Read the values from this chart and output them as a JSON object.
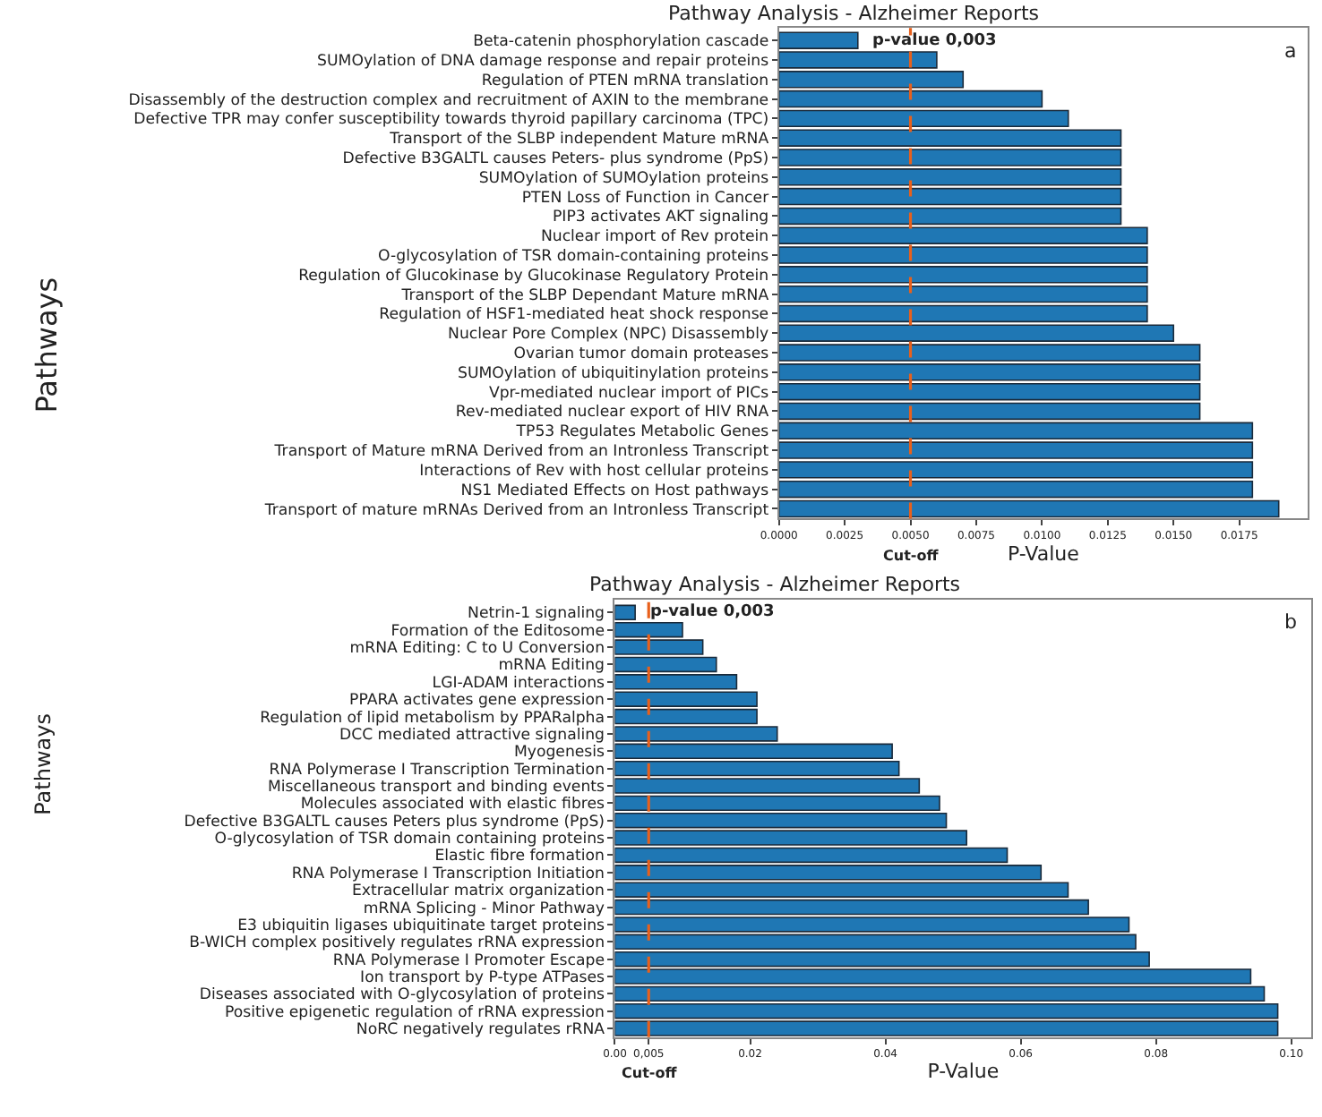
{
  "chart_data": [
    {
      "type": "bar",
      "orientation": "horizontal",
      "title": "Pathway Analysis - Alzheimer Reports",
      "xlabel": "P-Value",
      "ylabel": "Pathways",
      "categories": [
        "Beta-catenin phosphorylation cascade",
        "SUMOylation of DNA damage response and repair proteins",
        "Regulation of PTEN mRNA translation",
        "Disassembly of the destruction complex and recruitment of AXIN to the membrane",
        "Defective TPR may confer susceptibility towards thyroid papillary carcinoma (TPC)",
        "Transport of the SLBP independent Mature mRNA",
        "Defective B3GALTL causes Peters- plus syndrome (PpS)",
        "SUMOylation of SUMOylation proteins",
        "PTEN Loss of Function in Cancer",
        "PIP3 activates AKT signaling",
        "Nuclear import of Rev protein",
        "O-glycosylation of TSR domain-containing proteins",
        "Regulation of Glucokinase by Glucokinase Regulatory Protein",
        "Transport of the SLBP Dependant Mature mRNA",
        "Regulation of HSF1-mediated heat shock response",
        "Nuclear Pore Complex (NPC) Disassembly",
        "Ovarian tumor domain proteases",
        "SUMOylation of ubiquitinylation proteins",
        "Vpr-mediated nuclear import of PICs",
        "Rev-mediated nuclear export of HIV RNA",
        "TP53 Regulates Metabolic Genes",
        "Transport of Mature mRNA Derived from an Intronless Transcript",
        "Interactions of Rev with host cellular proteins",
        "NS1 Mediated Effects on Host pathways",
        "Transport of mature mRNAs Derived from an Intronless Transcript"
      ],
      "values": [
        0.003,
        0.006,
        0.007,
        0.01,
        0.011,
        0.013,
        0.013,
        0.013,
        0.013,
        0.013,
        0.014,
        0.014,
        0.014,
        0.014,
        0.014,
        0.015,
        0.016,
        0.016,
        0.016,
        0.016,
        0.018,
        0.018,
        0.018,
        0.018,
        0.019
      ],
      "color": "#1f77b4",
      "xlim": [
        0,
        0.0201
      ],
      "xticks": [
        {
          "value": 0,
          "label": "0.0000"
        },
        {
          "value": 0.0025,
          "label": "0.0025"
        },
        {
          "value": 0.005,
          "label": "0.0050"
        },
        {
          "value": 0.0075,
          "label": "0.0075"
        },
        {
          "value": 0.01,
          "label": "0.0100"
        },
        {
          "value": 0.0125,
          "label": "0.0125"
        },
        {
          "value": 0.015,
          "label": "0.0150"
        },
        {
          "value": 0.0175,
          "label": "0.0175"
        }
      ],
      "ref_lines": [
        {
          "axis": "x",
          "value": 0.005,
          "label": "Cut-off",
          "color": "#e8601c",
          "line_style": "dashed"
        }
      ],
      "annotations": [
        "p-value 0,003",
        "a"
      ],
      "legend": false
    },
    {
      "type": "bar",
      "orientation": "horizontal",
      "title": "Pathway Analysis - Alzheimer Reports",
      "xlabel": "P-Value",
      "ylabel": "Pathways",
      "categories": [
        "Netrin-1 signaling",
        "Formation of the Editosome",
        "mRNA Editing: C to U Conversion",
        "mRNA Editing",
        "LGI-ADAM interactions",
        "PPARA activates gene expression",
        "Regulation of lipid metabolism by PPARalpha",
        "DCC mediated attractive signaling",
        "Myogenesis",
        "RNA Polymerase I Transcription Termination",
        "Miscellaneous transport and binding events",
        "Molecules associated with elastic fibres",
        "Defective B3GALTL causes Peters plus syndrome (PpS)",
        "O-glycosylation of TSR domain containing proteins",
        "Elastic fibre formation",
        "RNA Polymerase I Transcription Initiation",
        "Extracellular matrix organization",
        "mRNA Splicing - Minor Pathway",
        "E3 ubiquitin ligases ubiquitinate target proteins",
        "B-WICH complex positively regulates rRNA expression",
        "RNA Polymerase I Promoter Escape",
        "Ion transport by P-type ATPases",
        "Diseases associated with O-glycosylation of proteins",
        "Positive epigenetic regulation of rRNA expression",
        "NoRC negatively regulates rRNA"
      ],
      "values": [
        0.003,
        0.01,
        0.013,
        0.015,
        0.018,
        0.021,
        0.021,
        0.024,
        0.041,
        0.042,
        0.045,
        0.048,
        0.049,
        0.052,
        0.058,
        0.063,
        0.067,
        0.07,
        0.076,
        0.077,
        0.079,
        0.094,
        0.096,
        0.098,
        0.098
      ],
      "color": "#1f77b4",
      "xlim": [
        0,
        0.103
      ],
      "xticks": [
        {
          "value": 0,
          "label": "0.00"
        },
        {
          "value": 0.005,
          "label": "0,005"
        },
        {
          "value": 0.02,
          "label": "0.02"
        },
        {
          "value": 0.04,
          "label": "0.04"
        },
        {
          "value": 0.06,
          "label": "0.06"
        },
        {
          "value": 0.08,
          "label": "0.08"
        },
        {
          "value": 0.1,
          "label": "0.10"
        }
      ],
      "ref_lines": [
        {
          "axis": "x",
          "value": 0.005,
          "label": "Cut-off",
          "color": "#e8601c",
          "line_style": "dashed"
        }
      ],
      "annotations": [
        "p-value 0,003",
        "b"
      ],
      "legend": false
    }
  ]
}
